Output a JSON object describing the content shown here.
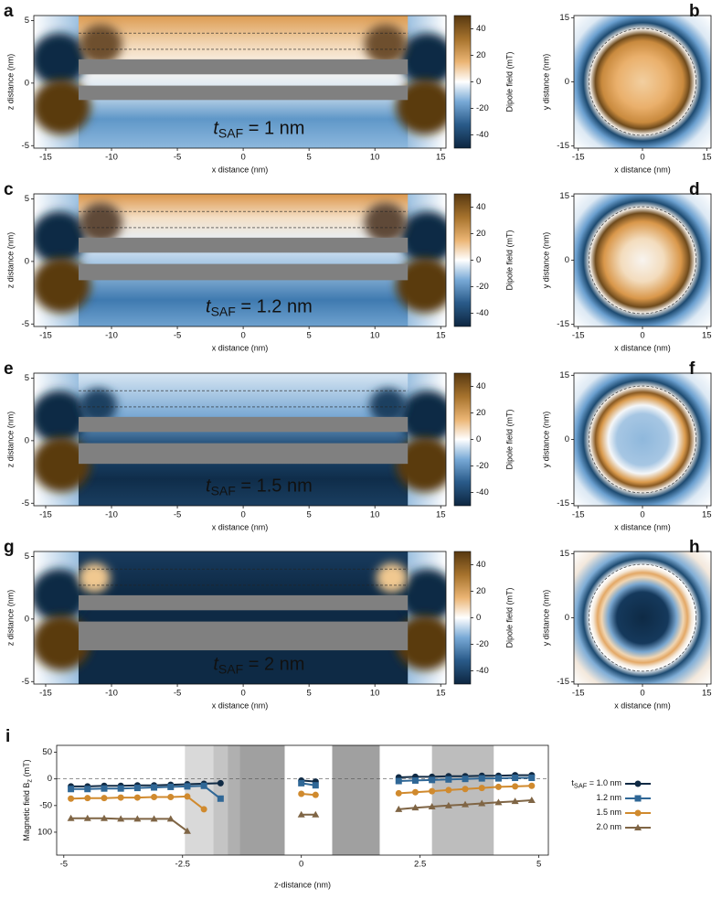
{
  "chart_data": [
    {
      "type": "heatmap",
      "label": "a",
      "annotation": {
        "t": "t",
        "sub": "SAF",
        "rest": " = 1 nm"
      },
      "xlabel": "x distance (nm)",
      "ylabel": "z distance (nm)",
      "xlim": [
        -15.9,
        15.4
      ],
      "ylim": [
        -5.2,
        5.4
      ],
      "xticks": [
        -15,
        -10,
        -5,
        0,
        5,
        10,
        15
      ],
      "yticks": [
        -5,
        0,
        5
      ],
      "colorbar": {
        "label": "Dipole field (mT)",
        "lim": [
          -50,
          50
        ],
        "ticks": [
          -40,
          -20,
          0,
          20,
          40
        ]
      }
    },
    {
      "type": "map",
      "label": "b",
      "xlabel": "x distance (nm)",
      "ylabel": "y distance (nm)",
      "xlim": [
        -16,
        16
      ],
      "ylim": [
        -15.5,
        15.5
      ],
      "xticks": [
        -15,
        0,
        15
      ],
      "yticks": [
        -15,
        0,
        15
      ]
    },
    {
      "type": "heatmap",
      "label": "c",
      "annotation": {
        "t": "t",
        "sub": "SAF",
        "rest": " = 1.2 nm"
      },
      "xlabel": "x distance (nm)",
      "ylabel": "z distance (nm)",
      "xlim": [
        -15.9,
        15.4
      ],
      "ylim": [
        -5.2,
        5.4
      ],
      "xticks": [
        -15,
        -10,
        -5,
        0,
        5,
        10,
        15
      ],
      "yticks": [
        -5,
        0,
        5
      ],
      "colorbar": {
        "label": "Dipole field (mT)",
        "lim": [
          -50,
          50
        ],
        "ticks": [
          -40,
          -20,
          0,
          20,
          40
        ]
      }
    },
    {
      "type": "map",
      "label": "d",
      "xlabel": "x distance (nm)",
      "ylabel": "y distance (nm)",
      "xlim": [
        -16,
        16
      ],
      "ylim": [
        -15.5,
        15.5
      ],
      "xticks": [
        -15,
        0,
        15
      ],
      "yticks": [
        -15,
        0,
        15
      ]
    },
    {
      "type": "heatmap",
      "label": "e",
      "annotation": {
        "t": "t",
        "sub": "SAF",
        "rest": " = 1.5 nm"
      },
      "xlabel": "x distance (nm)",
      "ylabel": "z distance (nm)",
      "xlim": [
        -15.9,
        15.4
      ],
      "ylim": [
        -5.2,
        5.4
      ],
      "xticks": [
        -15,
        -10,
        -5,
        0,
        5,
        10,
        15
      ],
      "yticks": [
        -5,
        0,
        5
      ],
      "colorbar": {
        "label": "Dipole field (mT)",
        "lim": [
          -50,
          50
        ],
        "ticks": [
          -40,
          -20,
          0,
          20,
          40
        ]
      }
    },
    {
      "type": "map",
      "label": "f",
      "xlabel": "x distance (nm)",
      "ylabel": "y distance (nm)",
      "xlim": [
        -16,
        16
      ],
      "ylim": [
        -15.5,
        15.5
      ],
      "xticks": [
        -15,
        0,
        15
      ],
      "yticks": [
        -15,
        0,
        15
      ]
    },
    {
      "type": "heatmap",
      "label": "g",
      "annotation": {
        "t": "t",
        "sub": "SAF",
        "rest": " = 2 nm"
      },
      "xlabel": "x distance (nm)",
      "ylabel": "z distance (nm)",
      "xlim": [
        -15.9,
        15.4
      ],
      "ylim": [
        -5.2,
        5.4
      ],
      "xticks": [
        -15,
        -10,
        -5,
        0,
        5,
        10,
        15
      ],
      "yticks": [
        -5,
        0,
        5
      ],
      "colorbar": {
        "label": "Dipole field (mT)",
        "lim": [
          -50,
          50
        ],
        "ticks": [
          -40,
          -20,
          0,
          20,
          40
        ]
      }
    },
    {
      "type": "map",
      "label": "h",
      "xlabel": "x distance (nm)",
      "ylabel": "y distance (nm)",
      "xlim": [
        -16,
        16
      ],
      "ylim": [
        -15.5,
        15.5
      ],
      "xticks": [
        -15,
        0,
        15
      ],
      "yticks": [
        -15,
        0,
        15
      ]
    },
    {
      "type": "line",
      "label": "i",
      "xlabel": "z-distance (nm)",
      "ylabel": {
        "text": "Magnetic field B",
        "sub": "z",
        "rest": " (mT)"
      },
      "xlim": [
        -5.15,
        5.2
      ],
      "ylim": [
        -143,
        63
      ],
      "xticks": [
        -5,
        -2.5,
        0,
        2.5,
        5
      ],
      "yticks": [
        50,
        0,
        -50,
        {
          "value": -100,
          "label": "100"
        }
      ],
      "legend_prefix": {
        "t": "t",
        "sub": "SAF",
        "rest": " = "
      },
      "x": [
        -4.85,
        -4.5,
        -4.15,
        -3.8,
        -3.45,
        -3.1,
        -2.75,
        -2.4,
        -2.05,
        -1.7,
        -1.0,
        0,
        0.3,
        1.2,
        2.05,
        2.4,
        2.75,
        3.1,
        3.45,
        3.8,
        4.15,
        4.5,
        4.85
      ],
      "series": [
        {
          "name": "1.0 nm",
          "color": "#102a44",
          "marker": "circle",
          "values": [
            -14,
            -14,
            -13,
            -13,
            -12,
            -12,
            -11,
            -10,
            -9,
            -8,
            null,
            -3,
            -5,
            null,
            3,
            4,
            4,
            5,
            5,
            6,
            6,
            7,
            7
          ]
        },
        {
          "name": "1.2 nm",
          "color": "#2f6796",
          "marker": "square",
          "values": [
            -19,
            -19,
            -18,
            -18,
            -17,
            -16,
            -15,
            -14,
            -13,
            -37,
            null,
            -8,
            -12,
            null,
            -4,
            -3,
            -2,
            -1,
            0,
            1,
            1,
            2,
            2
          ]
        },
        {
          "name": "1.5 nm",
          "color": "#d08a2e",
          "marker": "circle",
          "values": [
            -37,
            -36,
            -36,
            -35,
            -35,
            -34,
            -34,
            -33,
            -57,
            null,
            null,
            -28,
            -30,
            null,
            -27,
            -25,
            -23,
            -21,
            -19,
            -17,
            -15,
            -14,
            -13
          ]
        },
        {
          "name": "2.0 nm",
          "color": "#7f6545",
          "marker": "triangle",
          "values": [
            -74,
            -74,
            -74,
            -75,
            -75,
            -75,
            -75,
            -98,
            null,
            null,
            null,
            -67,
            -67,
            null,
            -57,
            -54,
            -52,
            -50,
            -48,
            -46,
            -44,
            -42,
            -40
          ]
        }
      ]
    }
  ]
}
